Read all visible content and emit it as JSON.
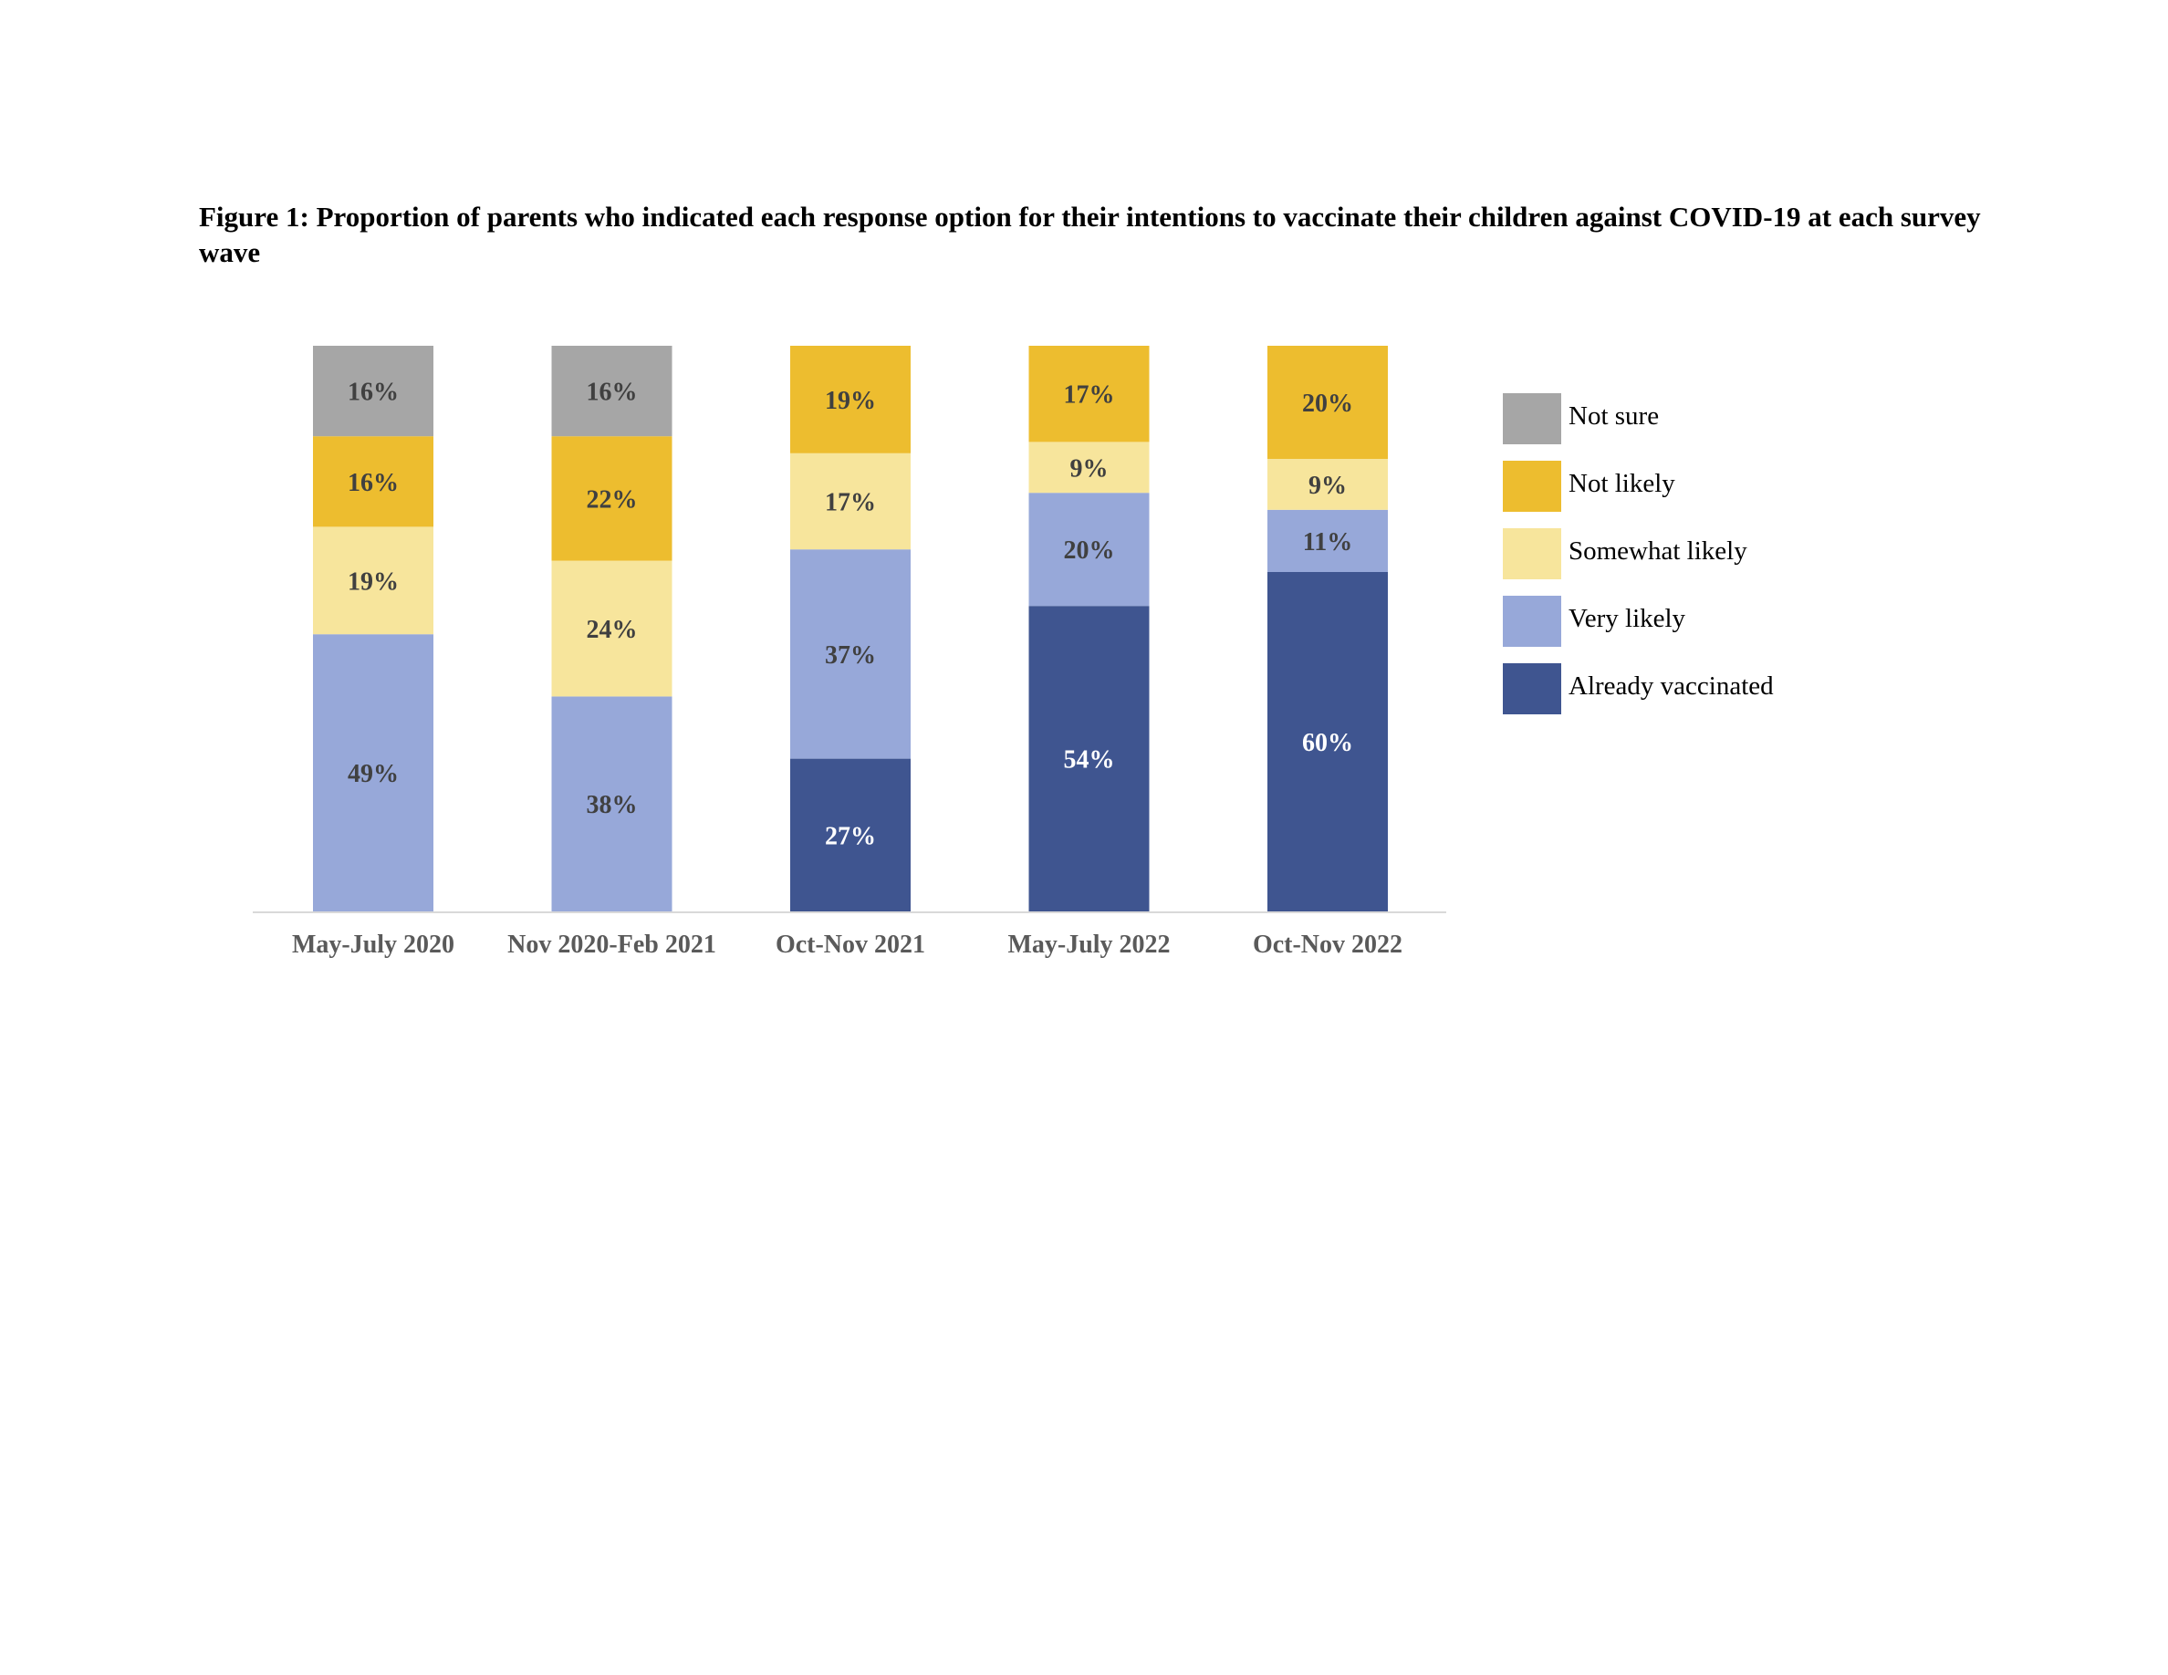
{
  "title": "Figure 1: Proportion of parents who indicated each response option for their intentions to vaccinate their children against COVID-19 at each survey wave",
  "chart_data": {
    "type": "bar",
    "stacked": true,
    "categories": [
      "May-July 2020",
      "Nov 2020-Feb 2021",
      "Oct-Nov 2021",
      "May-July 2022",
      "Oct-Nov 2022"
    ],
    "ylim": [
      0,
      100
    ],
    "grid": false,
    "legend_position": "right",
    "series": [
      {
        "name": "Already vaccinated",
        "color": "#3F5590",
        "label_color": "#ffffff",
        "values": [
          0,
          0,
          27,
          54,
          60
        ],
        "labels": [
          "",
          "",
          "27%",
          "54%",
          "60%"
        ]
      },
      {
        "name": "Very likely",
        "color": "#97A8D9",
        "label_color": "#404040",
        "values": [
          49,
          38,
          37,
          20,
          11
        ],
        "labels": [
          "49%",
          "38%",
          "37%",
          "20%",
          "11%"
        ]
      },
      {
        "name": "Somewhat likely",
        "color": "#F7E59C",
        "label_color": "#404040",
        "values": [
          19,
          24,
          17,
          9,
          9
        ],
        "labels": [
          "19%",
          "24%",
          "17%",
          "9%",
          "9%"
        ]
      },
      {
        "name": "Not likely",
        "color": "#EDBD2F",
        "label_color": "#404040",
        "values": [
          16,
          22,
          19,
          17,
          20
        ],
        "labels": [
          "16%",
          "22%",
          "19%",
          "17%",
          "20%"
        ]
      },
      {
        "name": "Not sure",
        "color": "#A6A6A6",
        "label_color": "#404040",
        "values": [
          16,
          16,
          0,
          0,
          0
        ],
        "labels": [
          "16%",
          "16%",
          "",
          "",
          ""
        ]
      }
    ],
    "legend_order": [
      "Not sure",
      "Not likely",
      "Somewhat likely",
      "Very likely",
      "Already vaccinated"
    ]
  }
}
